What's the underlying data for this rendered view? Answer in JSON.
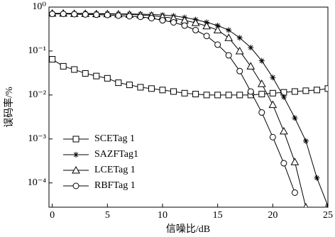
{
  "chart_data": {
    "type": "line",
    "x_label": "信噪比/dB",
    "y_label": "误码率/%",
    "log_y": true,
    "x": [
      0,
      1,
      2,
      3,
      4,
      5,
      6,
      7,
      8,
      9,
      10,
      11,
      12,
      13,
      14,
      15,
      16,
      17,
      18,
      19,
      20,
      21,
      22,
      23,
      24,
      25
    ],
    "xlim": [
      -0.3,
      25
    ],
    "xticks": [
      0,
      5,
      10,
      15,
      20,
      25
    ],
    "ylim": [
      2.8e-05,
      1
    ],
    "yticks": [
      {
        "value": 1,
        "label": "10⁰"
      },
      {
        "value": 0.1,
        "label": "10⁻¹"
      },
      {
        "value": 0.01,
        "label": "10⁻²"
      },
      {
        "value": 0.001,
        "label": "10⁻³"
      },
      {
        "value": 0.0001,
        "label": "10⁻⁴"
      }
    ],
    "legend": "lower left",
    "series": [
      {
        "name": "SCETag 1",
        "color": "#000000",
        "marker": "square",
        "values": [
          0.065,
          0.045,
          0.038,
          0.031,
          0.027,
          0.024,
          0.019,
          0.017,
          0.015,
          0.014,
          0.013,
          0.012,
          0.011,
          0.0105,
          0.01,
          0.01,
          0.01,
          0.01,
          0.01,
          0.0105,
          0.011,
          0.0115,
          0.012,
          0.0125,
          0.013,
          0.014
        ]
      },
      {
        "name": "SAZFTag1",
        "color": "#000000",
        "marker": "star",
        "values": [
          0.72,
          0.72,
          0.72,
          0.72,
          0.71,
          0.71,
          0.7,
          0.7,
          0.69,
          0.68,
          0.66,
          0.63,
          0.58,
          0.52,
          0.45,
          0.38,
          0.3,
          0.2,
          0.12,
          0.06,
          0.025,
          0.009,
          0.003,
          0.0009,
          0.00013,
          3e-05
        ]
      },
      {
        "name": "LCETag 1",
        "color": "#000000",
        "marker": "triangle",
        "values": [
          0.72,
          0.72,
          0.71,
          0.71,
          0.7,
          0.7,
          0.69,
          0.68,
          0.66,
          0.64,
          0.6,
          0.56,
          0.5,
          0.44,
          0.37,
          0.3,
          0.2,
          0.1,
          0.045,
          0.018,
          0.006,
          0.0015,
          0.0003,
          2.8e-05,
          null,
          null
        ]
      },
      {
        "name": "RBFTag 1",
        "color": "#000000",
        "marker": "circle",
        "values": [
          0.7,
          0.7,
          0.69,
          0.68,
          0.67,
          0.66,
          0.64,
          0.62,
          0.6,
          0.56,
          0.5,
          0.45,
          0.38,
          0.3,
          0.22,
          0.14,
          0.08,
          0.035,
          0.012,
          0.004,
          0.0011,
          0.00028,
          6e-05,
          null,
          null,
          null
        ]
      }
    ]
  }
}
